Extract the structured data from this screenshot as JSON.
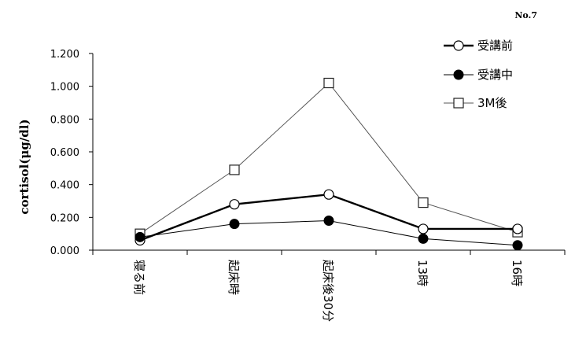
{
  "chart_data": {
    "type": "line",
    "corner_label": "No.7",
    "title": "",
    "xlabel": "",
    "ylabel": "cortisol(μg/dl)",
    "ylim": [
      0,
      1.2
    ],
    "yticks": [
      "0.000",
      "0.200",
      "0.400",
      "0.600",
      "0.800",
      "1.000",
      "1.200"
    ],
    "ytick_values": [
      0,
      0.2,
      0.4,
      0.6,
      0.8,
      1.0,
      1.2
    ],
    "categories": [
      "寝る前",
      "起床時",
      "起床後30分",
      "13時",
      "16時"
    ],
    "grid": false,
    "legend_position": "top-right",
    "series": [
      {
        "name": "受講前",
        "values": [
          0.06,
          0.28,
          0.34,
          0.13,
          0.13
        ],
        "marker": "open-circle",
        "line_width": "thick",
        "color": "#000000"
      },
      {
        "name": "受講中",
        "values": [
          0.08,
          0.16,
          0.18,
          0.07,
          0.03
        ],
        "marker": "filled-circle",
        "line_width": "thin",
        "color": "#000000"
      },
      {
        "name": "3M後",
        "values": [
          0.1,
          0.49,
          1.02,
          0.29,
          0.11
        ],
        "marker": "open-square",
        "line_width": "thin",
        "color": "#555555"
      }
    ]
  }
}
